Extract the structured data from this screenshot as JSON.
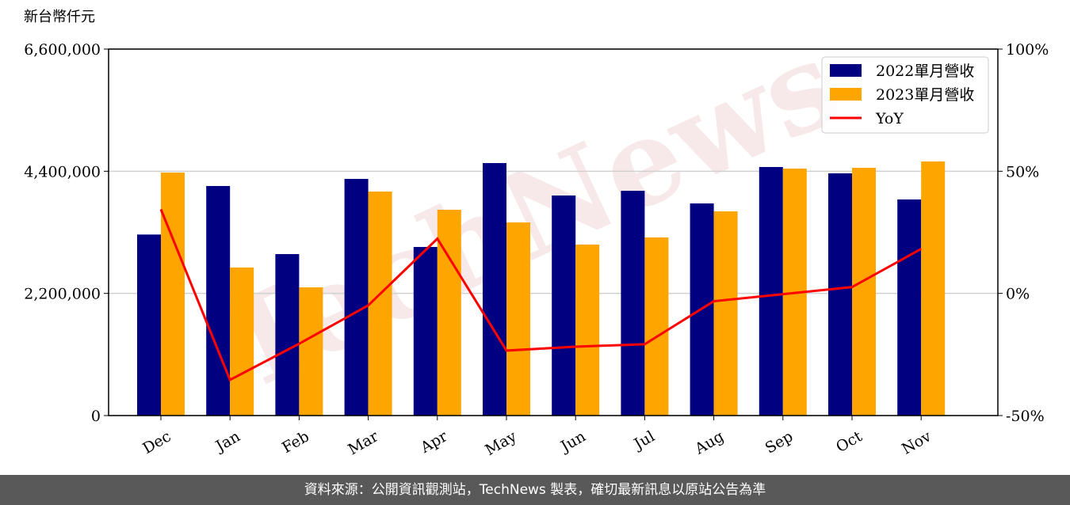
{
  "chart_data": {
    "type": "bar-line",
    "y_label": "新台幣仟元",
    "watermark": "TechNews",
    "categories": [
      "Dec",
      "Jan",
      "Feb",
      "Mar",
      "Apr",
      "May",
      "Jun",
      "Jul",
      "Aug",
      "Sep",
      "Oct",
      "Nov"
    ],
    "series": [
      {
        "name": "2022單月營收",
        "color": "#000080",
        "kind": "bar",
        "values": [
          3260000,
          4134000,
          2908000,
          4262000,
          3036000,
          4547000,
          3963000,
          4048000,
          3820000,
          4476000,
          4362000,
          3892000
        ]
      },
      {
        "name": "2023單月營收",
        "color": "#ffa500",
        "kind": "bar",
        "values": [
          4376000,
          2666000,
          2309000,
          4034000,
          3706000,
          3478000,
          3079000,
          3207000,
          3678000,
          4448000,
          4462000,
          4576000
        ]
      },
      {
        "name": "YoY",
        "color": "#ff0000",
        "kind": "line",
        "axis": "y2",
        "values": [
          34.4,
          -35.4,
          -20.6,
          -4.9,
          22.4,
          -23.4,
          -21.8,
          -20.8,
          -3.2,
          -0.3,
          2.6,
          18.2
        ]
      }
    ],
    "ylim": [
      0,
      6600000
    ],
    "yticks": [
      {
        "value": 0,
        "label": "0"
      },
      {
        "value": 2200000,
        "label": "2,200,000"
      },
      {
        "value": 4400000,
        "label": "4,400,000"
      },
      {
        "value": 6600000,
        "label": "6,600,000"
      }
    ],
    "y2lim": [
      -50,
      100
    ],
    "y2ticks": [
      {
        "value": -50,
        "label": "-50%"
      },
      {
        "value": 0,
        "label": "0%"
      },
      {
        "value": 50,
        "label": "50%"
      },
      {
        "value": 100,
        "label": "100%"
      }
    ],
    "grid": true,
    "legend": "upper right"
  },
  "footer": "資料來源：公開資訊觀測站，TechNews 製表，確切最新訊息以原站公告為準"
}
